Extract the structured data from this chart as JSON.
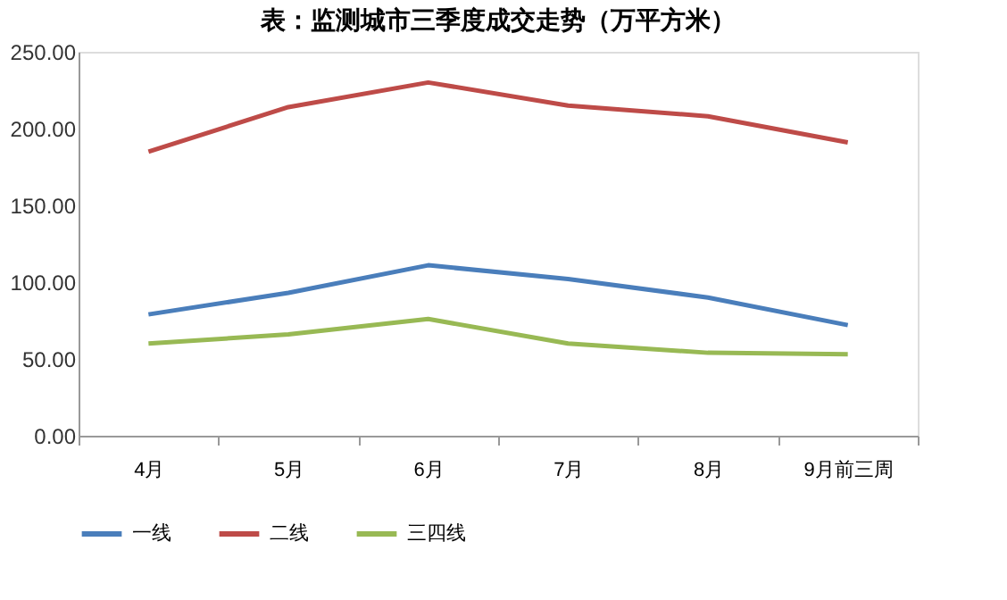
{
  "chart_data": {
    "type": "line",
    "title": "表：监测城市三季度成交走势（万平方米）",
    "categories": [
      "4月",
      "5月",
      "6月",
      "7月",
      "8月",
      "9月前三周"
    ],
    "series": [
      {
        "name": "一线",
        "color": "#4a7ebb",
        "values": [
          79,
          93,
          111,
          102,
          90,
          72
        ]
      },
      {
        "name": "二线",
        "color": "#be4b48",
        "values": [
          185,
          214,
          230,
          215,
          208,
          191
        ]
      },
      {
        "name": "三四线",
        "color": "#98b954",
        "values": [
          60,
          66,
          76,
          60,
          54,
          53
        ]
      }
    ],
    "ylim": [
      0,
      250
    ],
    "yticks": [
      {
        "value": 0,
        "label": "0.00"
      },
      {
        "value": 50,
        "label": "50.00"
      },
      {
        "value": 100,
        "label": "100.00"
      },
      {
        "value": 150,
        "label": "150.00"
      },
      {
        "value": 200,
        "label": "200.00"
      },
      {
        "value": 250,
        "label": "250.00"
      }
    ],
    "grid": false,
    "legend": "bottom",
    "line_style": "solid",
    "marker": "none"
  }
}
